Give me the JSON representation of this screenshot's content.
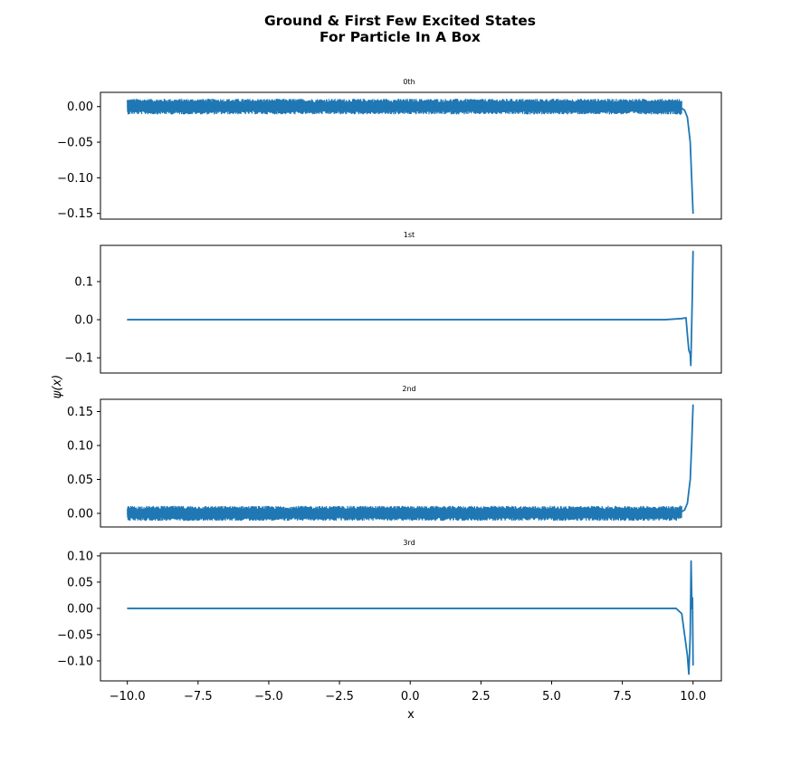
{
  "figure": {
    "title_line1": "Ground & First Few Excited States",
    "title_line2": "For Particle In A Box",
    "xlabel": "x",
    "ylabel": "ψ(x)"
  },
  "colors": {
    "line": "#1f77b4",
    "axes": "#000000",
    "background": "#ffffff"
  },
  "chart_data": [
    {
      "type": "line",
      "title": "0th",
      "x": [
        -10.0,
        -7.5,
        -5.0,
        -2.5,
        0.0,
        2.5,
        5.0,
        7.5,
        9.5,
        9.7,
        9.8,
        9.9,
        9.95,
        10.0
      ],
      "y": [
        0.0,
        0.0,
        0.0,
        0.0,
        0.0,
        0.0,
        0.0,
        0.0,
        0.0,
        -0.005,
        -0.015,
        -0.05,
        -0.1,
        -0.15
      ],
      "noise_amplitude": 0.011,
      "xlim": [
        -10.95,
        11.0
      ],
      "ylim": [
        -0.158,
        0.02
      ],
      "yticks": [
        0.0,
        -0.05,
        -0.1,
        -0.15
      ],
      "yticklabels": [
        "0.00",
        "−0.05",
        "−0.10",
        "−0.15"
      ],
      "grid": false
    },
    {
      "type": "line",
      "title": "1st",
      "x": [
        -10.0,
        -5.0,
        0.0,
        5.0,
        9.0,
        9.6,
        9.75,
        9.8,
        9.85,
        9.9,
        9.92,
        9.95,
        9.97,
        10.0
      ],
      "y": [
        0.0,
        0.0,
        0.0,
        0.0,
        0.0,
        0.003,
        0.005,
        -0.04,
        -0.08,
        -0.09,
        -0.12,
        -0.02,
        0.05,
        0.18
      ],
      "noise_amplitude": 0.0,
      "xlim": [
        -10.95,
        11.0
      ],
      "ylim": [
        -0.14,
        0.195
      ],
      "yticks": [
        0.1,
        0.0,
        -0.1
      ],
      "yticklabels": [
        "0.1",
        "0.0",
        "−0.1"
      ],
      "grid": false
    },
    {
      "type": "line",
      "title": "2nd",
      "x": [
        -10.0,
        -7.5,
        -5.0,
        -2.5,
        0.0,
        2.5,
        5.0,
        7.5,
        9.5,
        9.7,
        9.8,
        9.9,
        9.95,
        10.0
      ],
      "y": [
        0.0,
        0.0,
        0.0,
        0.0,
        0.0,
        0.0,
        0.0,
        0.0,
        0.0,
        0.005,
        0.015,
        0.05,
        0.1,
        0.16
      ],
      "noise_amplitude": 0.011,
      "xlim": [
        -10.95,
        11.0
      ],
      "ylim": [
        -0.02,
        0.168
      ],
      "yticks": [
        0.15,
        0.1,
        0.05,
        0.0
      ],
      "yticklabels": [
        "0.15",
        "0.10",
        "0.05",
        "0.00"
      ],
      "grid": false
    },
    {
      "type": "line",
      "title": "3rd",
      "x": [
        -10.0,
        -5.0,
        0.0,
        5.0,
        9.0,
        9.4,
        9.6,
        9.8,
        9.85,
        9.9,
        9.93,
        9.96,
        9.98,
        10.0
      ],
      "y": [
        0.0,
        0.0,
        0.0,
        0.0,
        0.0,
        0.0,
        -0.01,
        -0.09,
        -0.125,
        -0.05,
        0.09,
        0.0,
        0.02,
        -0.108
      ],
      "noise_amplitude": 0.0,
      "xlim": [
        -10.95,
        11.0
      ],
      "ylim": [
        -0.138,
        0.105
      ],
      "yticks": [
        0.1,
        0.05,
        0.0,
        -0.05,
        -0.1
      ],
      "yticklabels": [
        "0.10",
        "0.05",
        "0.00",
        "−0.05",
        "−0.10"
      ],
      "xticks": [
        -10.0,
        -7.5,
        -5.0,
        -2.5,
        0.0,
        2.5,
        5.0,
        7.5,
        10.0
      ],
      "xticklabels": [
        "−10.0",
        "−7.5",
        "−5.0",
        "−2.5",
        "0.0",
        "2.5",
        "5.0",
        "7.5",
        "10.0"
      ],
      "grid": false
    }
  ]
}
